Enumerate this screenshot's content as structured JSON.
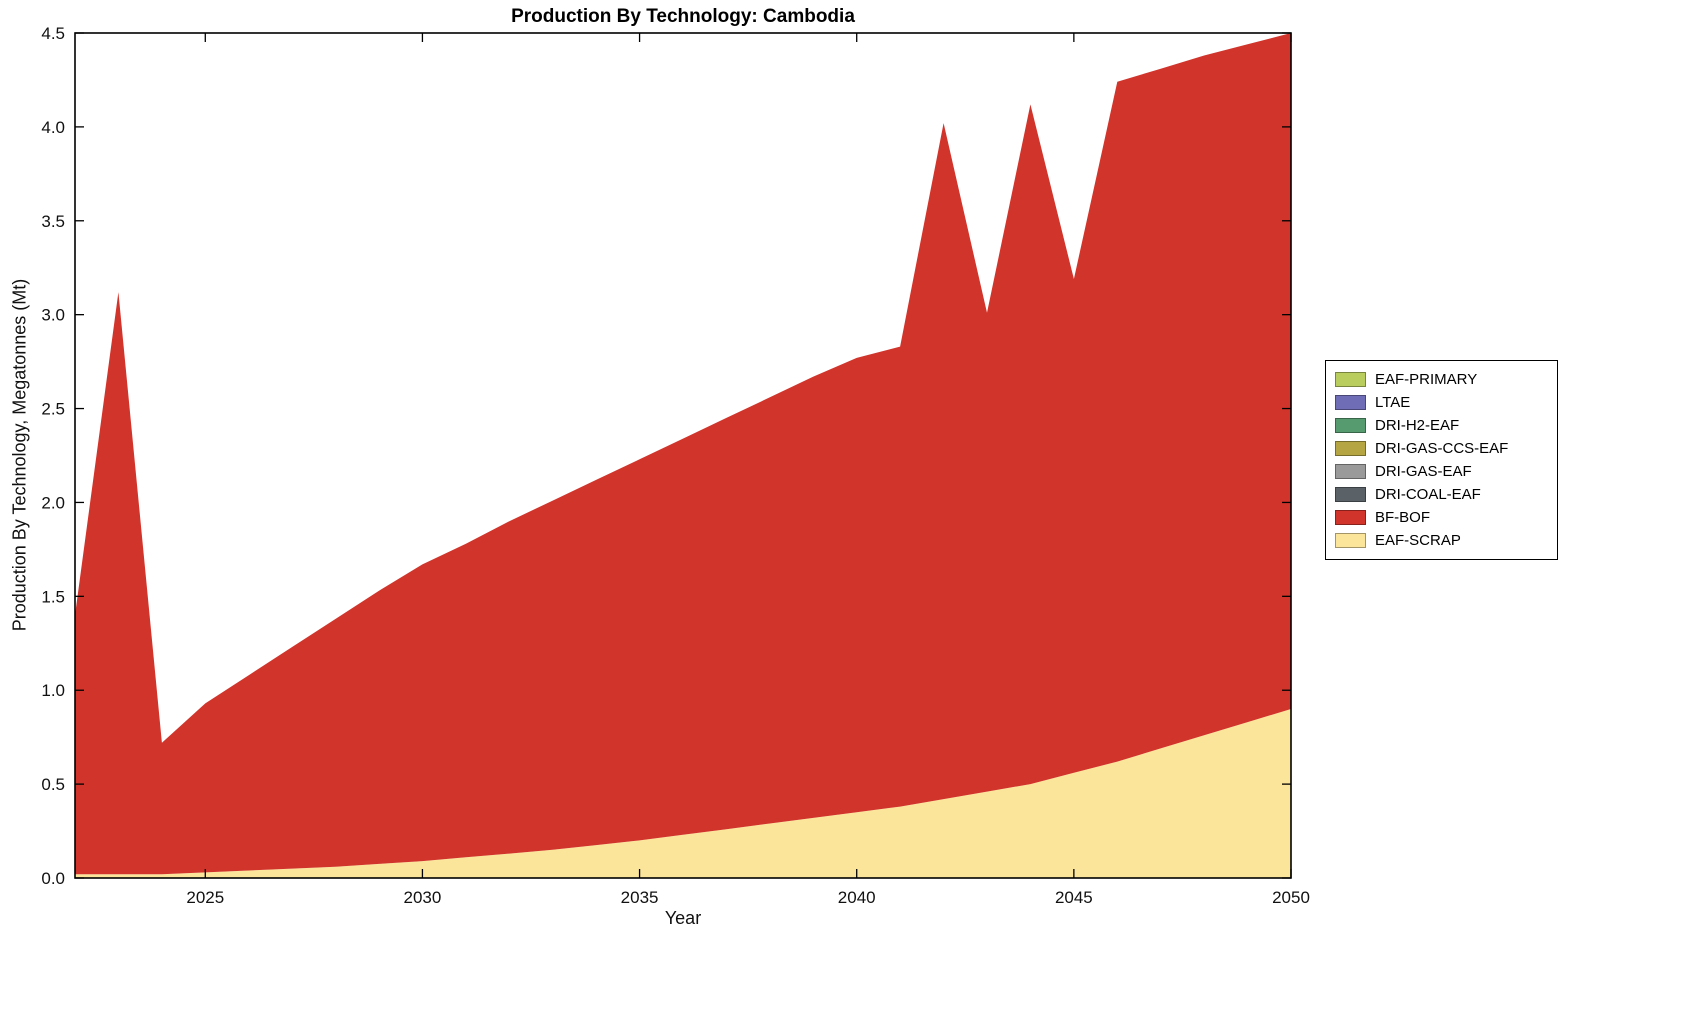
{
  "chart_data": {
    "type": "area",
    "stacked": true,
    "title": "Production By Technology: Cambodia",
    "xlabel": "Year",
    "ylabel": "Production By Technology, Megatonnes (Mt)",
    "xlim": [
      2022,
      2050
    ],
    "ylim": [
      0,
      4.5
    ],
    "xticks": [
      2025,
      2030,
      2035,
      2040,
      2045,
      2050
    ],
    "yticks": [
      0.0,
      0.5,
      1.0,
      1.5,
      2.0,
      2.5,
      3.0,
      3.5,
      4.0,
      4.5
    ],
    "grid": false,
    "x": [
      2022,
      2023,
      2024,
      2025,
      2026,
      2027,
      2028,
      2029,
      2030,
      2031,
      2032,
      2033,
      2034,
      2035,
      2036,
      2037,
      2038,
      2039,
      2040,
      2041,
      2042,
      2043,
      2044,
      2045,
      2046,
      2047,
      2048,
      2049,
      2050
    ],
    "series": [
      {
        "name": "EAF-SCRAP",
        "color": "#fae59b",
        "values": [
          0.02,
          0.02,
          0.02,
          0.03,
          0.04,
          0.05,
          0.06,
          0.075,
          0.09,
          0.11,
          0.13,
          0.15,
          0.175,
          0.2,
          0.23,
          0.26,
          0.29,
          0.32,
          0.35,
          0.38,
          0.42,
          0.46,
          0.5,
          0.56,
          0.62,
          0.69,
          0.76,
          0.83,
          0.9
        ]
      },
      {
        "name": "BF-BOF",
        "color": "#d1342b",
        "values": [
          1.38,
          3.1,
          0.7,
          0.9,
          1.04,
          1.18,
          1.32,
          1.455,
          1.58,
          1.67,
          1.77,
          1.86,
          1.945,
          2.03,
          2.11,
          2.19,
          2.27,
          2.35,
          2.42,
          2.45,
          3.6,
          2.55,
          3.62,
          2.63,
          3.62,
          3.62,
          3.62,
          3.61,
          3.6
        ]
      },
      {
        "name": "DRI-COAL-EAF",
        "color": "#5a6268",
        "values": [
          0,
          0,
          0,
          0,
          0,
          0,
          0,
          0,
          0,
          0,
          0,
          0,
          0,
          0,
          0,
          0,
          0,
          0,
          0,
          0,
          0,
          0,
          0,
          0,
          0,
          0,
          0,
          0,
          0
        ]
      },
      {
        "name": "DRI-GAS-EAF",
        "color": "#9a9a9a",
        "values": [
          0,
          0,
          0,
          0,
          0,
          0,
          0,
          0,
          0,
          0,
          0,
          0,
          0,
          0,
          0,
          0,
          0,
          0,
          0,
          0,
          0,
          0,
          0,
          0,
          0,
          0,
          0,
          0,
          0
        ]
      },
      {
        "name": "DRI-GAS-CCS-EAF",
        "color": "#b6a643",
        "values": [
          0,
          0,
          0,
          0,
          0,
          0,
          0,
          0,
          0,
          0,
          0,
          0,
          0,
          0,
          0,
          0,
          0,
          0,
          0,
          0,
          0,
          0,
          0,
          0,
          0,
          0,
          0,
          0,
          0
        ]
      },
      {
        "name": "DRI-H2-EAF",
        "color": "#569a6f",
        "values": [
          0,
          0,
          0,
          0,
          0,
          0,
          0,
          0,
          0,
          0,
          0,
          0,
          0,
          0,
          0,
          0,
          0,
          0,
          0,
          0,
          0,
          0,
          0,
          0,
          0,
          0,
          0,
          0,
          0
        ]
      },
      {
        "name": "LTAE",
        "color": "#6f6db5",
        "values": [
          0,
          0,
          0,
          0,
          0,
          0,
          0,
          0,
          0,
          0,
          0,
          0,
          0,
          0,
          0,
          0,
          0,
          0,
          0,
          0,
          0,
          0,
          0,
          0,
          0,
          0,
          0,
          0,
          0
        ]
      },
      {
        "name": "EAF-PRIMARY",
        "color": "#b9cc5e",
        "values": [
          0,
          0,
          0,
          0,
          0,
          0,
          0,
          0,
          0,
          0,
          0,
          0,
          0,
          0,
          0,
          0,
          0,
          0,
          0,
          0,
          0,
          0,
          0,
          0,
          0,
          0,
          0,
          0,
          0
        ]
      }
    ],
    "legend": {
      "position": "right-outside",
      "entries_top_to_bottom": [
        "EAF-PRIMARY",
        "LTAE",
        "DRI-H2-EAF",
        "DRI-GAS-CCS-EAF",
        "DRI-GAS-EAF",
        "DRI-COAL-EAF",
        "BF-BOF",
        "EAF-SCRAP"
      ]
    }
  }
}
